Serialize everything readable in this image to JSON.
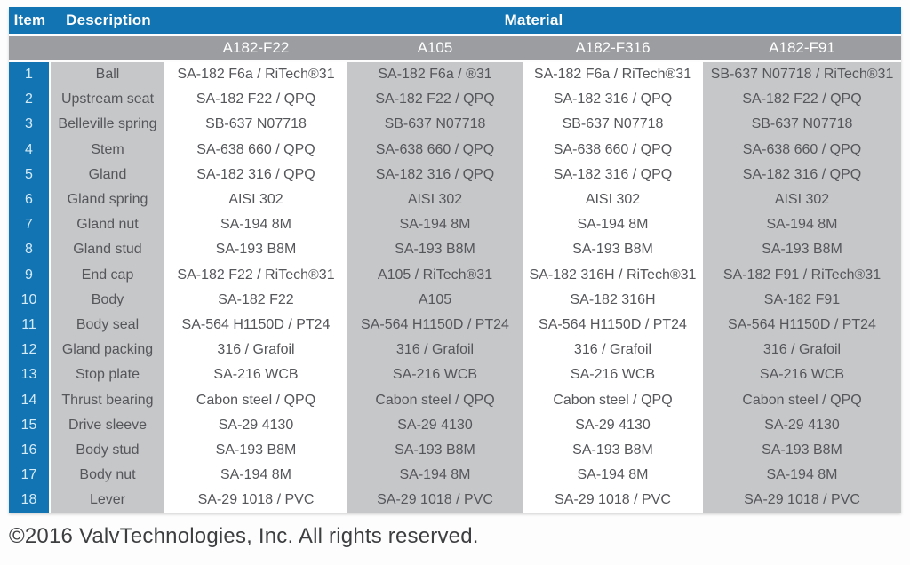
{
  "table": {
    "header": {
      "item": "Item",
      "description": "Description",
      "material": "Material"
    },
    "material_columns": [
      "A182-F22",
      "A105",
      "A182-F316",
      "A182-F91"
    ],
    "rows": [
      {
        "item": "1",
        "description": "Ball",
        "values": [
          "SA-182 F6a / RiTech®31",
          "SA-182 F6a / ®31",
          "SA-182 F6a / RiTech®31",
          "SB-637 N07718 / RiTech®31"
        ]
      },
      {
        "item": "2",
        "description": "Upstream seat",
        "values": [
          "SA-182 F22 / QPQ",
          "SA-182 F22 / QPQ",
          "SA-182 316 / QPQ",
          "SA-182 F22 / QPQ"
        ]
      },
      {
        "item": "3",
        "description": "Belleville spring",
        "values": [
          "SB-637 N07718",
          "SB-637 N07718",
          "SB-637 N07718",
          "SB-637 N07718"
        ]
      },
      {
        "item": "4",
        "description": "Stem",
        "values": [
          "SA-638 660 / QPQ",
          "SA-638 660 / QPQ",
          "SA-638 660 / QPQ",
          "SA-638 660 / QPQ"
        ]
      },
      {
        "item": "5",
        "description": "Gland",
        "values": [
          "SA-182 316 / QPQ",
          "SA-182 316 / QPQ",
          "SA-182 316 / QPQ",
          "SA-182 316 / QPQ"
        ]
      },
      {
        "item": "6",
        "description": "Gland spring",
        "values": [
          "AISI 302",
          "AISI 302",
          "AISI 302",
          "AISI 302"
        ]
      },
      {
        "item": "7",
        "description": "Gland nut",
        "values": [
          "SA-194 8M",
          "SA-194 8M",
          "SA-194 8M",
          "SA-194 8M"
        ]
      },
      {
        "item": "8",
        "description": "Gland stud",
        "values": [
          "SA-193 B8M",
          "SA-193 B8M",
          "SA-193 B8M",
          "SA-193 B8M"
        ]
      },
      {
        "item": "9",
        "description": "End cap",
        "values": [
          "SA-182 F22 / RiTech®31",
          "A105 / RiTech®31",
          "SA-182 316H / RiTech®31",
          "SA-182 F91 / RiTech®31"
        ]
      },
      {
        "item": "10",
        "description": "Body",
        "values": [
          "SA-182 F22",
          "A105",
          "SA-182 316H",
          "SA-182 F91"
        ]
      },
      {
        "item": "11",
        "description": "Body seal",
        "values": [
          "SA-564 H1150D / PT24",
          "SA-564 H1150D / PT24",
          "SA-564 H1150D / PT24",
          "SA-564 H1150D / PT24"
        ]
      },
      {
        "item": "12",
        "description": "Gland packing",
        "values": [
          "316 / Grafoil",
          "316 / Grafoil",
          "316 / Grafoil",
          "316 / Grafoil"
        ]
      },
      {
        "item": "13",
        "description": "Stop plate",
        "values": [
          "SA-216 WCB",
          "SA-216 WCB",
          "SA-216 WCB",
          "SA-216 WCB"
        ]
      },
      {
        "item": "14",
        "description": "Thrust bearing",
        "values": [
          "Cabon steel / QPQ",
          "Cabon steel / QPQ",
          "Cabon steel / QPQ",
          "Cabon steel / QPQ"
        ]
      },
      {
        "item": "15",
        "description": "Drive sleeve",
        "values": [
          "SA-29 4130",
          "SA-29 4130",
          "SA-29 4130",
          "SA-29 4130"
        ]
      },
      {
        "item": "16",
        "description": "Body stud",
        "values": [
          "SA-193 B8M",
          "SA-193 B8M",
          "SA-193 B8M",
          "SA-193 B8M"
        ]
      },
      {
        "item": "17",
        "description": "Body nut",
        "values": [
          "SA-194 8M",
          "SA-194 8M",
          "SA-194 8M",
          "SA-194 8M"
        ]
      },
      {
        "item": "18",
        "description": "Lever",
        "values": [
          "SA-29 1018 / PVC",
          "SA-29 1018 / PVC",
          "SA-29 1018 / PVC",
          "SA-29 1018 / PVC"
        ]
      }
    ]
  },
  "footer": {
    "copyright": "©2016 ValvTechnologies, Inc. All rights reserved."
  },
  "colors": {
    "header_blue": "#1274b2",
    "subheader_gray": "#9b9da0",
    "cell_gray": "#c6c7c9",
    "cell_white": "#ffffff",
    "text_dark": "#55565a",
    "text_light": "#ffffff"
  }
}
